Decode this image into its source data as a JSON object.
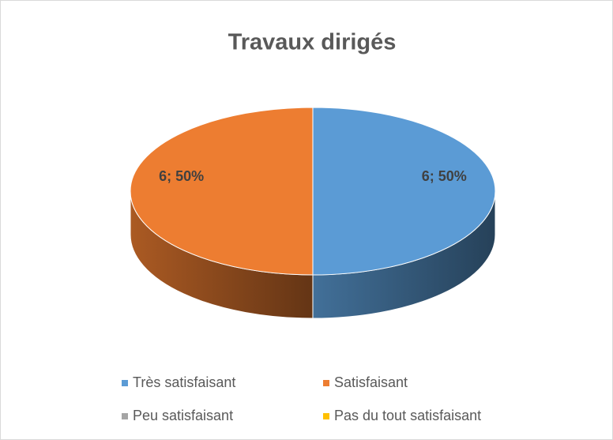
{
  "chart_data": {
    "type": "pie3d",
    "title": "Travaux dirigés",
    "categories": [
      "Très satisfaisant",
      "Satisfaisant",
      "Peu satisfaisant",
      "Pas du tout satisfaisant"
    ],
    "values": [
      6,
      6,
      0,
      0
    ],
    "value_labels": [
      "6; 50%",
      "6; 50%",
      null,
      null
    ],
    "colors": [
      "#5b9bd5",
      "#ed7d31",
      "#a5a5a5",
      "#ffc000"
    ],
    "legend": "bottom"
  }
}
